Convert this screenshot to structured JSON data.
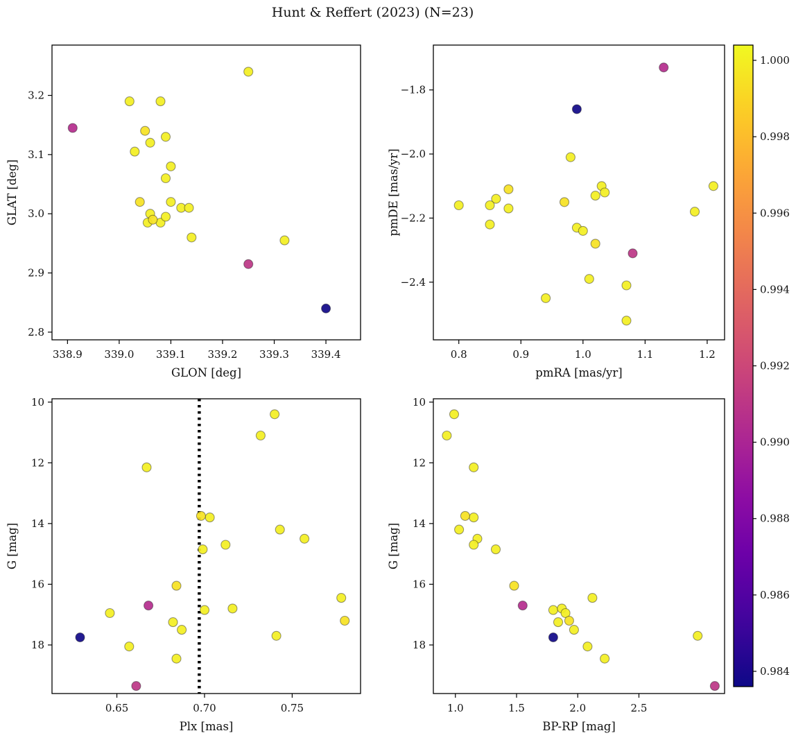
{
  "chart_data": {
    "type": "scatter",
    "title": "Hunt & Reffert (2023) (N=23)",
    "n_members": 23,
    "grid": false,
    "legend_position": "none",
    "colorbar": {
      "cmap": "plasma",
      "vmin": 0.9836,
      "vmax": 1.0004,
      "tick_values": [
        1.0,
        0.998,
        0.996,
        0.994,
        0.992,
        0.99,
        0.988,
        0.986,
        0.984
      ],
      "tick_labels": [
        "1.000",
        "0.998",
        "0.996",
        "0.994",
        "0.992",
        "0.990",
        "0.988",
        "0.986",
        "0.984"
      ]
    },
    "panels": [
      {
        "id": "glon-glat",
        "xfield": "glon",
        "yfield": "glat",
        "xlabel": "GLON [deg]",
        "ylabel": "GLAT [deg]",
        "xlim": [
          338.87,
          339.467
        ],
        "ylim": [
          2.787,
          3.285
        ],
        "xticks": [
          338.9,
          339.0,
          339.1,
          339.2,
          339.3,
          339.4
        ],
        "xtick_labels": [
          "338.9",
          "339.0",
          "339.1",
          "339.2",
          "339.3",
          "339.4"
        ],
        "yticks": [
          2.8,
          2.9,
          3.0,
          3.1,
          3.2
        ],
        "ytick_labels": [
          "2.8",
          "2.9",
          "3.0",
          "3.1",
          "3.2"
        ],
        "invert_y": false
      },
      {
        "id": "pmra-pmde",
        "xfield": "pmra",
        "yfield": "pmde",
        "xlabel": "pmRA [mas/yr]",
        "ylabel": "pmDE [mas/yr]",
        "xlim": [
          0.759,
          1.228
        ],
        "ylim": [
          -2.58,
          -1.66
        ],
        "xticks": [
          0.8,
          0.9,
          1.0,
          1.1,
          1.2
        ],
        "xtick_labels": [
          "0.8",
          "0.9",
          "1.0",
          "1.1",
          "1.2"
        ],
        "yticks": [
          -1.8,
          -2.0,
          -2.2,
          -2.4
        ],
        "ytick_labels": [
          "−1.8",
          "−2.0",
          "−2.2",
          "−2.4"
        ],
        "invert_y": false
      },
      {
        "id": "plx-g",
        "xfield": "plx",
        "yfield": "g",
        "xlabel": "Plx [mas]",
        "ylabel": "G [mag]",
        "xlim": [
          0.613,
          0.789
        ],
        "ylim": [
          9.89,
          19.6
        ],
        "xticks": [
          0.65,
          0.7,
          0.75
        ],
        "xtick_labels": [
          "0.65",
          "0.70",
          "0.75"
        ],
        "yticks": [
          10,
          12,
          14,
          16,
          18
        ],
        "ytick_labels": [
          "10",
          "12",
          "14",
          "16",
          "18"
        ],
        "invert_y": true,
        "vline": {
          "x": 0.697,
          "style": "dotted",
          "color": "#000000",
          "width": 4.5
        }
      },
      {
        "id": "bprp-g",
        "xfield": "bprp",
        "yfield": "g",
        "xlabel": "BP-RP [mag]",
        "ylabel": "G [mag]",
        "xlim": [
          0.82,
          3.2
        ],
        "ylim": [
          9.89,
          19.6
        ],
        "xticks": [
          1.0,
          1.5,
          2.0,
          2.5
        ],
        "xtick_labels": [
          "1.0",
          "1.5",
          "2.0",
          "2.5"
        ],
        "yticks": [
          10,
          12,
          14,
          16,
          18
        ],
        "ytick_labels": [
          "10",
          "12",
          "14",
          "16",
          "18"
        ],
        "invert_y": true
      }
    ],
    "stars": [
      {
        "glon": 339.25,
        "glat": 3.24,
        "pmra": 0.98,
        "pmde": -2.01,
        "plx": 0.74,
        "g": 10.4,
        "bprp": 0.99,
        "prob": 1.0
      },
      {
        "glon": 339.02,
        "glat": 3.19,
        "pmra": 1.21,
        "pmde": -2.1,
        "plx": 0.732,
        "g": 11.1,
        "bprp": 0.93,
        "prob": 1.0
      },
      {
        "glon": 339.08,
        "glat": 3.19,
        "pmra": 1.03,
        "pmde": -2.1,
        "plx": 0.667,
        "g": 12.15,
        "bprp": 1.15,
        "prob": 1.0
      },
      {
        "glon": 339.05,
        "glat": 3.14,
        "pmra": 0.88,
        "pmde": -2.11,
        "plx": 0.698,
        "g": 13.75,
        "bprp": 1.08,
        "prob": 0.9995
      },
      {
        "glon": 339.06,
        "glat": 3.12,
        "pmra": 1.02,
        "pmde": -2.13,
        "plx": 0.703,
        "g": 13.8,
        "bprp": 1.15,
        "prob": 1.0
      },
      {
        "glon": 339.09,
        "glat": 3.13,
        "pmra": 0.86,
        "pmde": -2.14,
        "plx": 0.743,
        "g": 14.2,
        "bprp": 1.03,
        "prob": 1.0
      },
      {
        "glon": 339.03,
        "glat": 3.105,
        "pmra": 0.8,
        "pmde": -2.16,
        "plx": 0.757,
        "g": 14.5,
        "bprp": 1.18,
        "prob": 1.0
      },
      {
        "glon": 339.1,
        "glat": 3.08,
        "pmra": 0.85,
        "pmde": -2.16,
        "plx": 0.712,
        "g": 14.7,
        "bprp": 1.15,
        "prob": 1.0
      },
      {
        "glon": 339.09,
        "glat": 3.06,
        "pmra": 0.88,
        "pmde": -2.17,
        "plx": 0.699,
        "g": 14.85,
        "bprp": 1.33,
        "prob": 1.0
      },
      {
        "glon": 339.04,
        "glat": 3.02,
        "pmra": 0.97,
        "pmde": -2.15,
        "plx": 0.684,
        "g": 16.05,
        "bprp": 1.48,
        "prob": 0.9995
      },
      {
        "glon": 338.91,
        "glat": 3.145,
        "pmra": 1.13,
        "pmde": -1.73,
        "plx": 0.668,
        "g": 16.7,
        "bprp": 1.55,
        "prob": 0.9905
      },
      {
        "glon": 339.1,
        "glat": 3.02,
        "pmra": 1.18,
        "pmde": -2.18,
        "plx": 0.7,
        "g": 16.85,
        "bprp": 1.8,
        "prob": 1.0
      },
      {
        "glon": 339.12,
        "glat": 3.01,
        "pmra": 0.85,
        "pmde": -2.22,
        "plx": 0.716,
        "g": 16.8,
        "bprp": 1.87,
        "prob": 1.0
      },
      {
        "glon": 339.135,
        "glat": 3.01,
        "pmra": 0.99,
        "pmde": -2.23,
        "plx": 0.646,
        "g": 16.95,
        "bprp": 1.9,
        "prob": 1.0
      },
      {
        "glon": 339.06,
        "glat": 3.0,
        "pmra": 1.0,
        "pmde": -2.24,
        "plx": 0.778,
        "g": 16.45,
        "bprp": 2.12,
        "prob": 1.0
      },
      {
        "glon": 339.065,
        "glat": 2.99,
        "pmra": 1.02,
        "pmde": -2.28,
        "plx": 0.78,
        "g": 17.2,
        "bprp": 1.93,
        "prob": 0.9995
      },
      {
        "glon": 339.055,
        "glat": 2.985,
        "pmra": 0.94,
        "pmde": -2.45,
        "plx": 0.682,
        "g": 17.25,
        "bprp": 1.84,
        "prob": 1.0
      },
      {
        "glon": 339.08,
        "glat": 2.985,
        "pmra": 1.01,
        "pmde": -2.39,
        "plx": 0.687,
        "g": 17.5,
        "bprp": 1.97,
        "prob": 1.0
      },
      {
        "glon": 339.4,
        "glat": 2.84,
        "pmra": 0.99,
        "pmde": -1.86,
        "plx": 0.629,
        "g": 17.75,
        "bprp": 1.8,
        "prob": 0.9837
      },
      {
        "glon": 339.09,
        "glat": 2.995,
        "pmra": 1.07,
        "pmde": -2.41,
        "plx": 0.741,
        "g": 17.7,
        "bprp": 2.98,
        "prob": 1.0
      },
      {
        "glon": 339.14,
        "glat": 2.96,
        "pmra": 1.07,
        "pmde": -2.52,
        "plx": 0.657,
        "g": 18.05,
        "bprp": 2.08,
        "prob": 1.0
      },
      {
        "glon": 339.32,
        "glat": 2.955,
        "pmra": 1.035,
        "pmde": -2.12,
        "plx": 0.684,
        "g": 18.45,
        "bprp": 2.22,
        "prob": 1.0
      },
      {
        "glon": 339.25,
        "glat": 2.915,
        "pmra": 1.08,
        "pmde": -2.31,
        "plx": 0.661,
        "g": 19.35,
        "bprp": 3.12,
        "prob": 0.991
      }
    ]
  }
}
